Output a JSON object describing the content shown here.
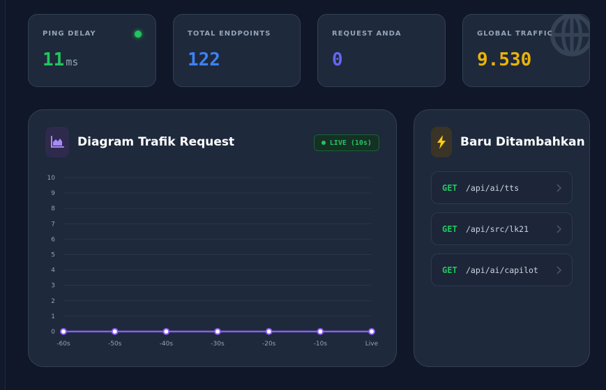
{
  "stats": {
    "ping": {
      "label": "PING DELAY",
      "value": "11",
      "unit": "ms",
      "color": "#22c55e",
      "status_color": "#22c55e"
    },
    "endpoints": {
      "label": "TOTAL ENDPOINTS",
      "value": "122",
      "color": "#3b82f6"
    },
    "requests": {
      "label": "REQUEST ANDA",
      "value": "0",
      "color": "#6366f1"
    },
    "traffic": {
      "label": "GLOBAL TRAFFIC",
      "value": "9.530",
      "color": "#eab308",
      "icon": "globe-icon"
    }
  },
  "chart_panel": {
    "title": "Diagram Trafik Request",
    "icon": "area-chart-icon",
    "live_badge": "LIVE (10s)"
  },
  "chart_data": {
    "type": "line",
    "categories": [
      "-60s",
      "-50s",
      "-40s",
      "-30s",
      "-20s",
      "-10s",
      "Live"
    ],
    "series": [
      {
        "values": [
          0,
          0,
          0,
          0,
          0,
          0,
          0
        ]
      }
    ],
    "y_ticks": [
      "0",
      "1",
      "2",
      "3",
      "4",
      "5",
      "6",
      "7",
      "8",
      "9",
      "10"
    ],
    "ylim": [
      0,
      10
    ],
    "grid": true,
    "color": "#8b5cf6"
  },
  "recent_panel": {
    "title": "Baru Ditambahkan",
    "icon": "lightning-icon",
    "items": [
      {
        "method": "GET",
        "path": "/api/ai/tts"
      },
      {
        "method": "GET",
        "path": "/api/src/lk21"
      },
      {
        "method": "GET",
        "path": "/api/ai/capilot"
      }
    ]
  }
}
